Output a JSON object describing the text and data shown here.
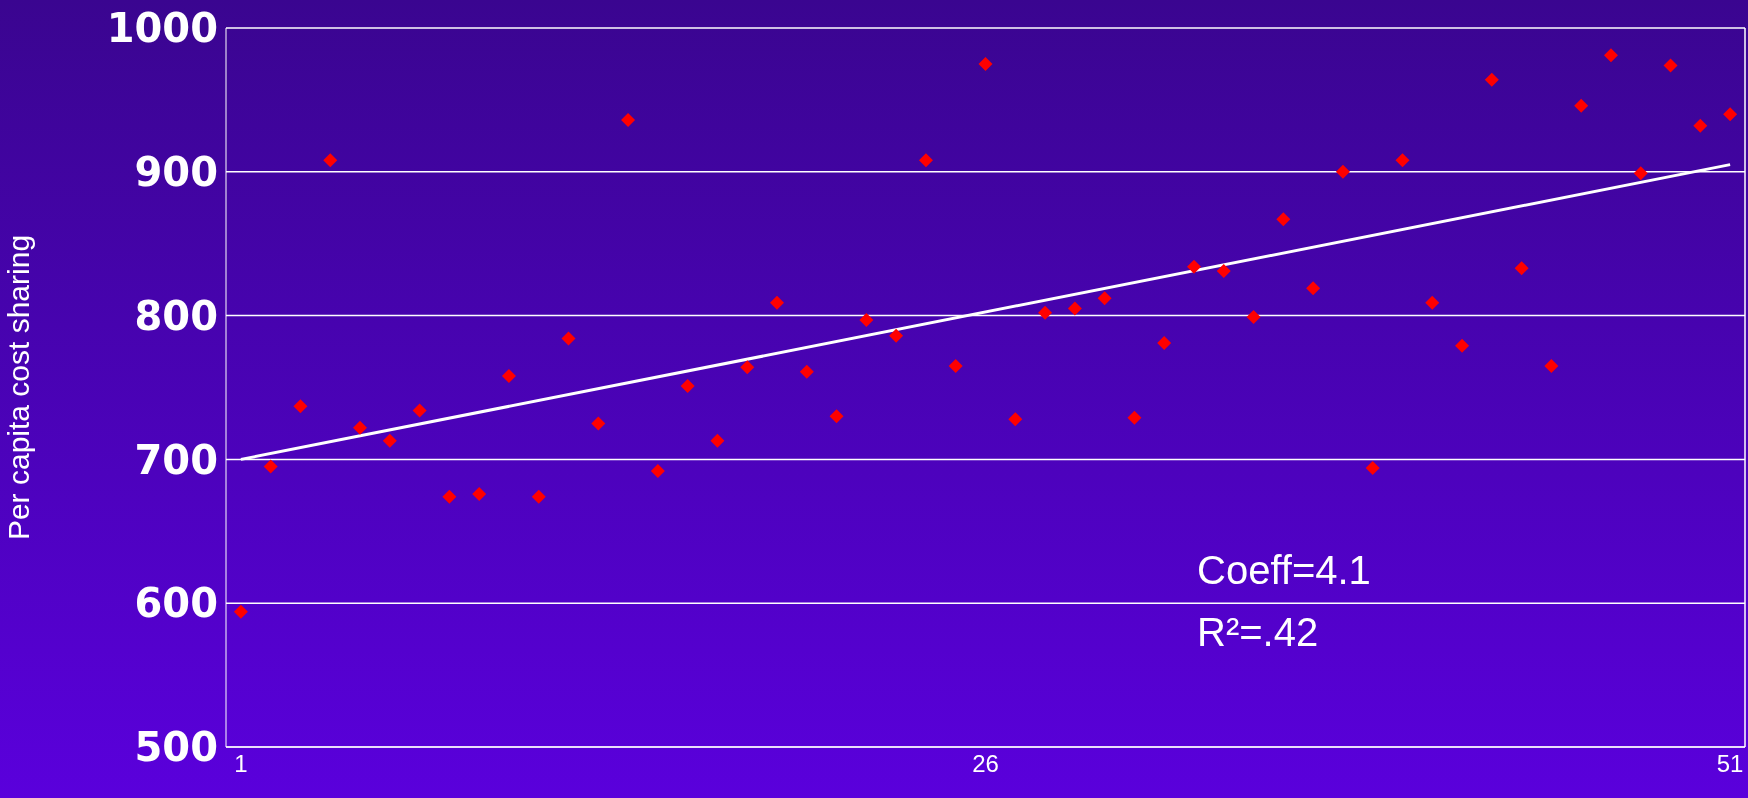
{
  "chart_data": {
    "type": "scatter",
    "ylabel": "Per capita cost sharing",
    "xlim": [
      0.5,
      51.5
    ],
    "xticks": [
      1,
      26,
      51
    ],
    "ylim": [
      500,
      1000
    ],
    "yticks": [
      500,
      600,
      700,
      800,
      900,
      1000
    ],
    "grid": "y",
    "marker": "diamond",
    "legend": false,
    "annotations": [
      "Coeff=4.1",
      "R²=.42"
    ],
    "series": [
      {
        "color": "#ff0000",
        "x": [
          1,
          2,
          3,
          4,
          5,
          6,
          7,
          8,
          9,
          10,
          11,
          12,
          13,
          14,
          15,
          16,
          17,
          18,
          19,
          20,
          21,
          22,
          23,
          24,
          25,
          26,
          27,
          28,
          29,
          30,
          31,
          32,
          33,
          34,
          35,
          36,
          37,
          38,
          39,
          40,
          41,
          42,
          43,
          44,
          45,
          46,
          47,
          48,
          49,
          50,
          51
        ],
        "values": [
          594,
          695,
          737,
          908,
          722,
          713,
          734,
          674,
          676,
          758,
          674,
          784,
          725,
          936,
          692,
          751,
          713,
          764,
          809,
          761,
          730,
          797,
          786,
          908,
          765,
          975,
          728,
          802,
          805,
          812,
          729,
          781,
          834,
          831,
          799,
          867,
          819,
          900,
          694,
          908,
          809,
          779,
          964,
          833,
          765,
          946,
          981,
          899,
          974,
          932,
          940
        ]
      },
      {
        "type": "line",
        "color": "#ffffff",
        "x": [
          1,
          51
        ],
        "values": [
          700,
          905
        ],
        "marker": "none"
      }
    ]
  }
}
